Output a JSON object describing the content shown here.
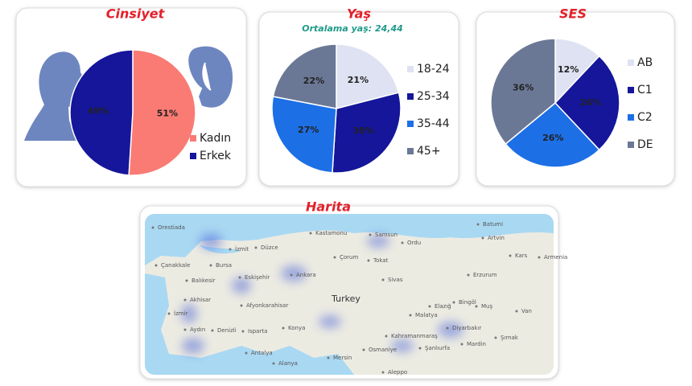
{
  "chart_data": [
    {
      "type": "pie",
      "title": "Cinsiyet",
      "categories": [
        "Kadın",
        "Erkek"
      ],
      "values": [
        51,
        49
      ],
      "value_labels": [
        "51%",
        "49%"
      ],
      "colors": [
        "#f97b74",
        "#15169a"
      ]
    },
    {
      "type": "pie",
      "title": "Yaş",
      "subtitle": "Ortalama yaş: 24,44",
      "categories": [
        "18-24",
        "25-34",
        "35-44",
        "45+"
      ],
      "values": [
        21,
        30,
        27,
        22
      ],
      "value_labels": [
        "21%",
        "30%",
        "27%",
        "22%"
      ],
      "colors": [
        "#dfe2f2",
        "#15169a",
        "#1d6fe6",
        "#6b7895"
      ]
    },
    {
      "type": "pie",
      "title": "SES",
      "categories": [
        "AB",
        "C1",
        "C2",
        "DE"
      ],
      "values": [
        12,
        26,
        26,
        36
      ],
      "value_labels": [
        "12%",
        "26%",
        "26%",
        "36%"
      ],
      "colors": [
        "#dfe2f2",
        "#15169a",
        "#1d6fe6",
        "#6b7895"
      ]
    }
  ],
  "map": {
    "title": "Harita",
    "country": "Turkey",
    "places": [
      "Orestiada",
      "Kastamonu",
      "Samsun",
      "Ordu",
      "Batumi",
      "Artvin",
      "Düzce",
      "İzmit",
      "Bursa",
      "Çanakkale",
      "Balıkesir",
      "Eskişehir",
      "Ankara",
      "Çorum",
      "Tokat",
      "Sivas",
      "Erzurum",
      "Kars",
      "Akhisar",
      "Afyonkarahisar",
      "İzmir",
      "Aydın",
      "Denizli",
      "Isparta",
      "Konya",
      "Antalya",
      "Mersin",
      "Osmaniye",
      "Kahramanmaraş",
      "Malatya",
      "Elazığ",
      "Bingöl",
      "Muş",
      "Van",
      "Diyarbakır",
      "Şanlıurfa",
      "Mardin",
      "Şırnak",
      "Alanya",
      "Aleppo",
      "Armenia"
    ]
  }
}
